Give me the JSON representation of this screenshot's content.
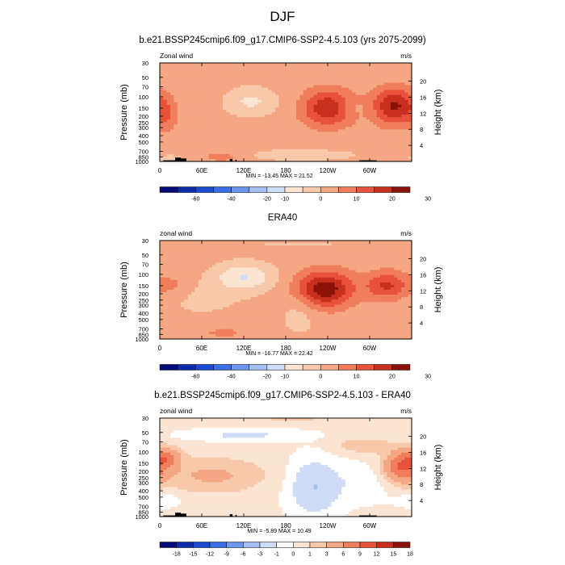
{
  "figure": {
    "title": "DJF",
    "colors": {
      "wind_palette": [
        "#050b7a",
        "#0d2aa8",
        "#1b4ad1",
        "#3b6fe6",
        "#6d95ee",
        "#a3bff4",
        "#cfdcf8",
        "#fbe4d2",
        "#f8c8aa",
        "#f5a784",
        "#f07e5c",
        "#e8523a",
        "#c7301f",
        "#8a1208"
      ],
      "diff_palette": [
        "#050b7a",
        "#0d2aa8",
        "#1b4ad1",
        "#3b6fe6",
        "#6d95ee",
        "#a3bff4",
        "#cfdcf8",
        "#ffffff",
        "#fbe4d2",
        "#f8c8aa",
        "#f5a784",
        "#f07e5c",
        "#e8523a",
        "#c7301f",
        "#8a1208"
      ]
    }
  },
  "chart_data": [
    {
      "type": "heatmap",
      "title": "b.e21.BSSP245cmip6.f09_g17.CMIP6-SSP2-4.5.103 (yrs 2075-2099)",
      "left_label": "Zonal wind",
      "right_label": "m/s",
      "ylabel": "Pressure (mb)",
      "ylabel_right": "Height (km)",
      "xticks": [
        "0",
        "60E",
        "120E",
        "180",
        "120W",
        "60W"
      ],
      "xlim": [
        0,
        360
      ],
      "yticks": [
        "30",
        "50",
        "70",
        "100",
        "150",
        "200",
        "250",
        "300",
        "400",
        "500",
        "700",
        "850",
        "1000"
      ],
      "ylim": [
        1000,
        30
      ],
      "y2ticks": [
        "20",
        "16",
        "12",
        "8",
        "4"
      ],
      "stats": "MIN = -13.45  MAX =  21.52",
      "colorbar_labels": [
        "-60",
        "-40",
        "-20",
        "-10",
        "0",
        "10",
        "20",
        "30"
      ],
      "levels": [
        -70,
        -60,
        -50,
        -40,
        -30,
        -20,
        -10,
        -5,
        0,
        5,
        10,
        15,
        20,
        25,
        30
      ],
      "background_value": 2,
      "features": [
        {
          "lon": 130,
          "p": 120,
          "amp": -8,
          "wl": 25,
          "wp": 0.35
        },
        {
          "lon": 270,
          "p": 150,
          "amp": -3,
          "wl": 22,
          "wp": 0.2
        },
        {
          "lon": 200,
          "p": 800,
          "amp": -5,
          "wl": 60,
          "wp": 0.15
        },
        {
          "lon": 15,
          "p": 900,
          "amp": -6,
          "wl": 12,
          "wp": 0.08
        },
        {
          "lon": 240,
          "p": 150,
          "amp": 18,
          "wl": 25,
          "wp": 0.45
        },
        {
          "lon": 335,
          "p": 140,
          "amp": 19,
          "wl": 22,
          "wp": 0.45
        },
        {
          "lon": 10,
          "p": 200,
          "amp": 6,
          "wl": 10,
          "wp": 0.4
        },
        {
          "lon": 90,
          "p": 850,
          "amp": 5,
          "wl": 25,
          "wp": 0.15
        }
      ],
      "topography": [
        {
          "lon0": 5,
          "lon1": 35,
          "p": 960
        },
        {
          "lon0": 22,
          "lon1": 30,
          "p": 870
        },
        {
          "lon0": 30,
          "lon1": 38,
          "p": 900
        },
        {
          "lon0": 100,
          "lon1": 104,
          "p": 920
        },
        {
          "lon0": 108,
          "lon1": 110,
          "p": 940
        },
        {
          "lon0": 285,
          "lon1": 310,
          "p": 960
        }
      ]
    },
    {
      "type": "heatmap",
      "title": "ERA40",
      "left_label": "zonal wind",
      "right_label": "m/s",
      "ylabel": "Pressure (mb)",
      "ylabel_right": "Height (km)",
      "xticks": [
        "0",
        "60E",
        "120E",
        "180",
        "120W",
        "60W"
      ],
      "xlim": [
        0,
        360
      ],
      "yticks": [
        "30",
        "50",
        "70",
        "100",
        "150",
        "200",
        "250",
        "300",
        "400",
        "500",
        "700",
        "850",
        "1000"
      ],
      "ylim": [
        1000,
        30
      ],
      "y2ticks": [
        "20",
        "16",
        "12",
        "8",
        "4"
      ],
      "stats": "MIN = -16.77  MAX =  22.42",
      "colorbar_labels": [
        "-60",
        "-40",
        "-20",
        "-10",
        "0",
        "10",
        "20",
        "30"
      ],
      "levels": [
        -70,
        -60,
        -50,
        -40,
        -30,
        -20,
        -10,
        -5,
        0,
        5,
        10,
        15,
        20,
        25,
        30
      ],
      "background_value": 2,
      "features": [
        {
          "lon": 120,
          "p": 110,
          "amp": -12,
          "wl": 30,
          "wp": 0.35
        },
        {
          "lon": 60,
          "p": 250,
          "amp": -3,
          "wl": 45,
          "wp": 0.45
        },
        {
          "lon": 200,
          "p": 400,
          "amp": -4,
          "wl": 20,
          "wp": 0.6
        },
        {
          "lon": 200,
          "p": 35,
          "amp": -3,
          "wl": 60,
          "wp": 0.05
        },
        {
          "lon": 235,
          "p": 170,
          "amp": 22,
          "wl": 28,
          "wp": 0.45
        },
        {
          "lon": 325,
          "p": 150,
          "amp": 14,
          "wl": 22,
          "wp": 0.35
        },
        {
          "lon": 20,
          "p": 150,
          "amp": 4,
          "wl": 15,
          "wp": 0.3
        },
        {
          "lon": 90,
          "p": 800,
          "amp": 4,
          "wl": 30,
          "wp": 0.15
        }
      ],
      "topography": []
    },
    {
      "type": "heatmap",
      "title": "b.e21.BSSP245cmip6.f09_g17.CMIP6-SSP2-4.5.103 - ERA40",
      "left_label": "zonal wind",
      "right_label": "m/s",
      "ylabel": "Pressure (mb)",
      "ylabel_right": "Height (km)",
      "xticks": [
        "0",
        "60E",
        "120E",
        "180",
        "120W",
        "60W"
      ],
      "xlim": [
        0,
        360
      ],
      "yticks": [
        "30",
        "50",
        "70",
        "100",
        "150",
        "200",
        "250",
        "300",
        "400",
        "500",
        "700",
        "850",
        "1000"
      ],
      "ylim": [
        1000,
        30
      ],
      "y2ticks": [
        "20",
        "16",
        "12",
        "8",
        "4"
      ],
      "stats": "MIN =  -5.89  MAX =  10.49",
      "colorbar_labels": [
        "-18",
        "-15",
        "-12",
        "-9",
        "-6",
        "-3",
        "-1",
        "0",
        "1",
        "3",
        "6",
        "9",
        "12",
        "15",
        "18"
      ],
      "levels": [
        -21,
        -18,
        -15,
        -12,
        -9,
        -6,
        -3,
        -1,
        1,
        3,
        6,
        9,
        12,
        15,
        18
      ],
      "background_value": -0.5,
      "features": [
        {
          "lon": 220,
          "p": 350,
          "amp": -5.5,
          "wl": 25,
          "wp": 0.7
        },
        {
          "lon": 120,
          "p": 55,
          "amp": -3,
          "wl": 60,
          "wp": 0.15
        },
        {
          "lon": 290,
          "p": 300,
          "amp": -2,
          "wl": 30,
          "wp": 0.5
        },
        {
          "lon": 5,
          "p": 550,
          "amp": -2,
          "wl": 20,
          "wp": 0.2
        },
        {
          "lon": 75,
          "p": 230,
          "amp": 4,
          "wl": 55,
          "wp": 0.45
        },
        {
          "lon": 10,
          "p": 120,
          "amp": 6,
          "wl": 15,
          "wp": 0.25
        },
        {
          "lon": 345,
          "p": 170,
          "amp": 9,
          "wl": 18,
          "wp": 0.4
        },
        {
          "lon": 290,
          "p": 80,
          "amp": 3,
          "wl": 30,
          "wp": 0.2
        },
        {
          "lon": 190,
          "p": 30,
          "amp": 2,
          "wl": 60,
          "wp": 0.08
        }
      ],
      "topography": [
        {
          "lon0": 5,
          "lon1": 35,
          "p": 960
        },
        {
          "lon0": 22,
          "lon1": 30,
          "p": 870
        },
        {
          "lon0": 30,
          "lon1": 38,
          "p": 900
        },
        {
          "lon0": 100,
          "lon1": 104,
          "p": 920
        },
        {
          "lon0": 108,
          "lon1": 110,
          "p": 940
        },
        {
          "lon0": 285,
          "lon1": 310,
          "p": 960
        }
      ]
    }
  ]
}
